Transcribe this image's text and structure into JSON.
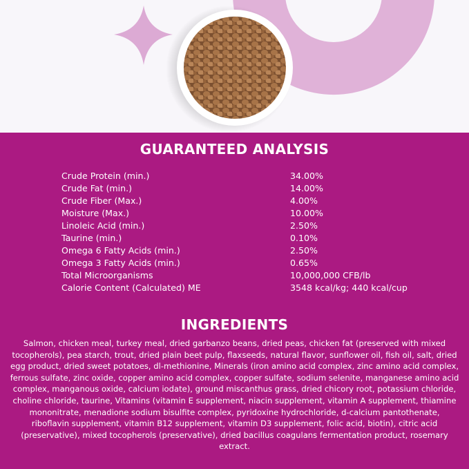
{
  "colors": {
    "panel": "#ab1a82",
    "accent_light": "#e0b2d8",
    "background": "#f8f6fa",
    "kibble": "#9b6a40"
  },
  "hero": {
    "icons": [
      "sparkle-icon",
      "ring-shape",
      "food-bowl"
    ]
  },
  "analysis": {
    "title": "GUARANTEED ANALYSIS",
    "rows": [
      {
        "label": "Crude Protein (min.)",
        "value": "34.00%"
      },
      {
        "label": "Crude Fat (min.)",
        "value": "14.00%"
      },
      {
        "label": "Crude Fiber (Max.)",
        "value": "4.00%"
      },
      {
        "label": "Moisture (Max.)",
        "value": "10.00%"
      },
      {
        "label": "Linoleic Acid (min.)",
        "value": "2.50%"
      },
      {
        "label": "Taurine (min.)",
        "value": "0.10%"
      },
      {
        "label": "Omega 6 Fatty Acids (min.)",
        "value": "2.50%"
      },
      {
        "label": "Omega 3 Fatty Acids (min.)",
        "value": "0.65%"
      },
      {
        "label": "Total Microorganisms",
        "value": "10,000,000 CFB/lb"
      },
      {
        "label": "Calorie Content (Calculated) ME",
        "value": "3548 kcal/kg; 440 kcal/cup"
      }
    ]
  },
  "ingredients": {
    "title": "INGREDIENTS",
    "text": "Salmon, chicken meal, turkey meal, dried garbanzo beans, dried peas, chicken fat (preserved with mixed tocopherols), pea starch, trout, dried plain beet pulp, flaxseeds, natural flavor, sunflower oil, fish oil, salt, dried egg product, dried sweet potatoes, dl-methionine, Minerals (iron amino acid complex, zinc amino acid complex, ferrous sulfate, zinc oxide, copper amino acid complex, copper sulfate, sodium selenite, manganese amino acid complex, manganous oxide, calcium iodate), ground miscanthus grass, dried chicory root, potassium chloride, choline chloride, taurine, Vitamins (vitamin E supplement, niacin supplement, vitamin A supplement, thiamine mononitrate, menadione sodium bisulfite complex, pyridoxine hydrochloride, d-calcium pantothenate, riboflavin supplement, vitamin B12 supplement, vitamin D3 supplement, folic acid, biotin), citric acid (preservative), mixed tocopherols (preservative), dried bacillus coagulans fermentation product, rosemary extract."
  }
}
